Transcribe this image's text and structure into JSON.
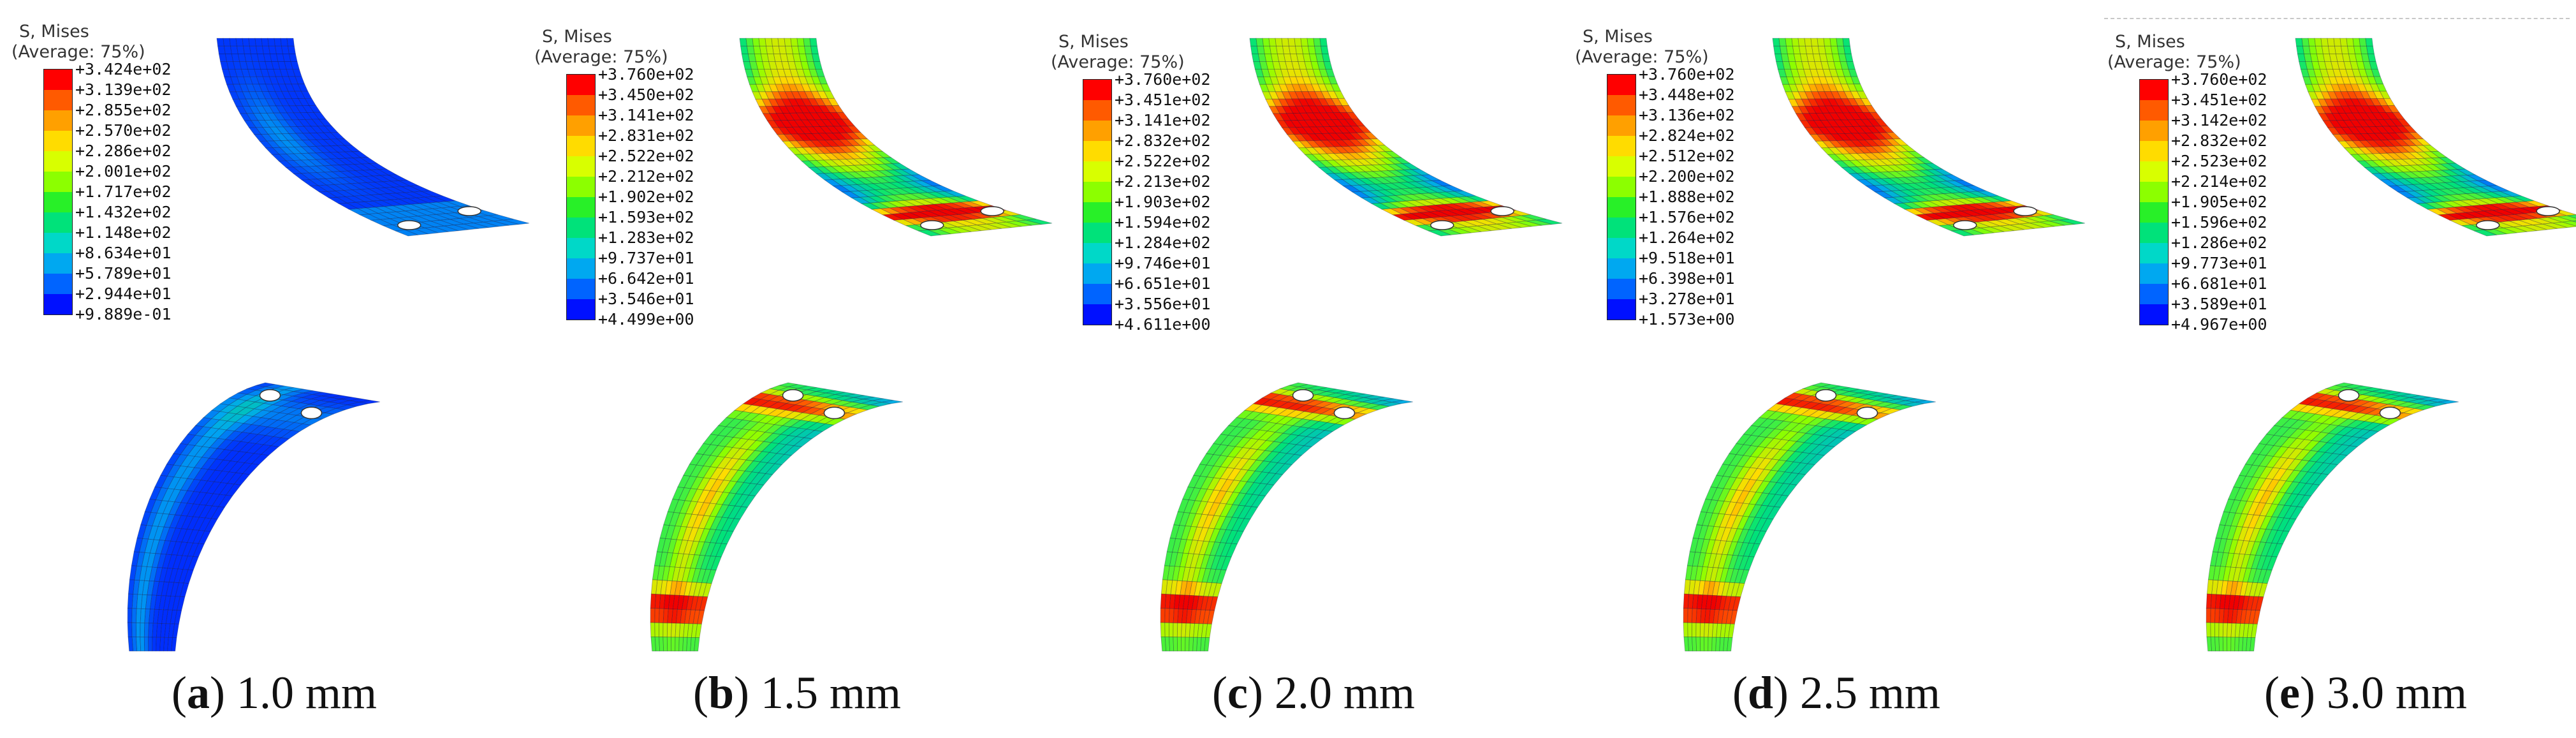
{
  "legend_title": "S, Mises",
  "legend_subtitle": "(Average: 75%)",
  "legend_colors": [
    "#ff0000",
    "#ff5a00",
    "#ffa000",
    "#ffdc00",
    "#d8ff00",
    "#8cff00",
    "#28f028",
    "#00e27a",
    "#00d8c8",
    "#00a8f0",
    "#0064ff",
    "#0010ff"
  ],
  "panels": [
    {
      "letter": "a",
      "thickness": "1.0 mm",
      "legend_values": [
        "+3.424e+02",
        "+3.139e+02",
        "+2.855e+02",
        "+2.570e+02",
        "+2.286e+02",
        "+2.001e+02",
        "+1.717e+02",
        "+1.432e+02",
        "+1.148e+02",
        "+8.634e+01",
        "+5.789e+01",
        "+2.944e+01",
        "+9.889e-01"
      ],
      "stress_level": "low"
    },
    {
      "letter": "b",
      "thickness": "1.5 mm",
      "legend_values": [
        "+3.760e+02",
        "+3.450e+02",
        "+3.141e+02",
        "+2.831e+02",
        "+2.522e+02",
        "+2.212e+02",
        "+1.902e+02",
        "+1.593e+02",
        "+1.283e+02",
        "+9.737e+01",
        "+6.642e+01",
        "+3.546e+01",
        "+4.499e+00"
      ],
      "stress_level": "high"
    },
    {
      "letter": "c",
      "thickness": "2.0 mm",
      "legend_values": [
        "+3.760e+02",
        "+3.451e+02",
        "+3.141e+02",
        "+2.832e+02",
        "+2.522e+02",
        "+2.213e+02",
        "+1.903e+02",
        "+1.594e+02",
        "+1.284e+02",
        "+9.746e+01",
        "+6.651e+01",
        "+3.556e+01",
        "+4.611e+00"
      ],
      "stress_level": "high"
    },
    {
      "letter": "d",
      "thickness": "2.5 mm",
      "legend_values": [
        "+3.760e+02",
        "+3.448e+02",
        "+3.136e+02",
        "+2.824e+02",
        "+2.512e+02",
        "+2.200e+02",
        "+1.888e+02",
        "+1.576e+02",
        "+1.264e+02",
        "+9.518e+01",
        "+6.398e+01",
        "+3.278e+01",
        "+1.573e+00"
      ],
      "stress_level": "high"
    },
    {
      "letter": "e",
      "thickness": "3.0 mm",
      "legend_values": [
        "+3.760e+02",
        "+3.451e+02",
        "+3.142e+02",
        "+2.832e+02",
        "+2.523e+02",
        "+2.214e+02",
        "+1.905e+02",
        "+1.596e+02",
        "+1.286e+02",
        "+9.773e+01",
        "+6.681e+01",
        "+3.589e+01",
        "+4.967e+00"
      ],
      "stress_level": "high"
    }
  ]
}
